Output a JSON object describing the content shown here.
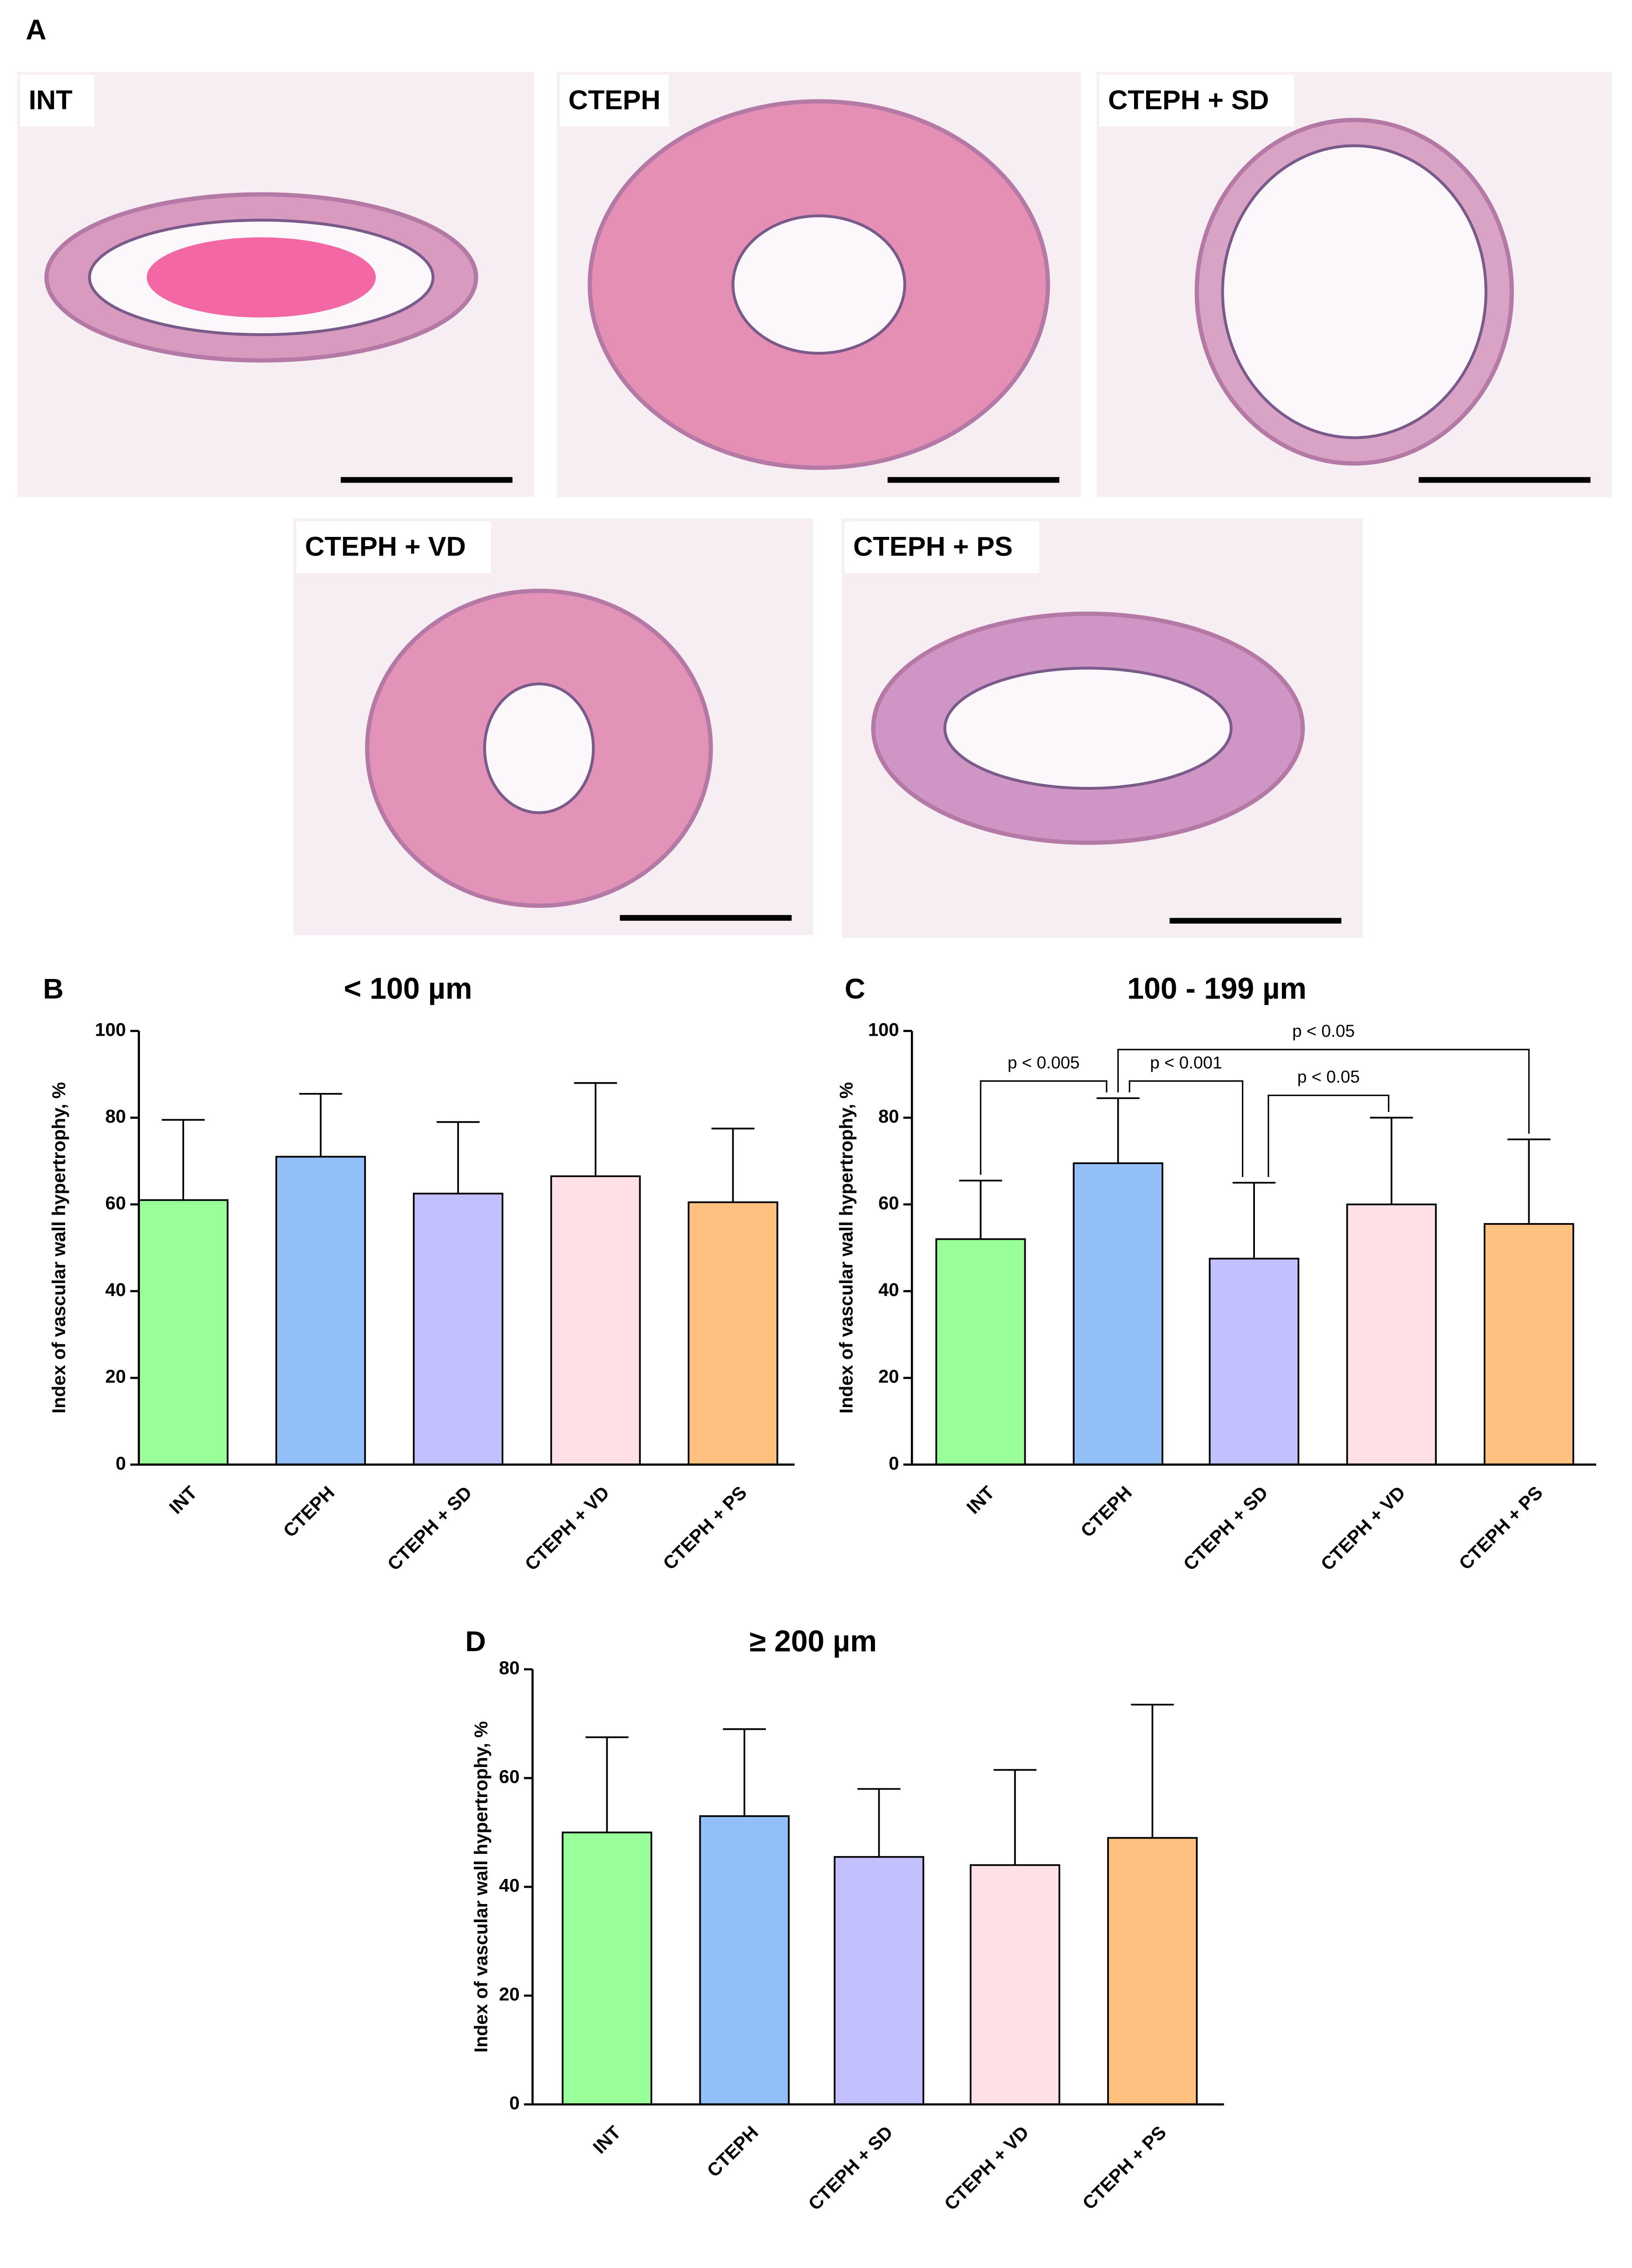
{
  "panel_a": {
    "label": "A",
    "images": [
      "INT",
      "CTEPH",
      "CTEPH + SD",
      "CTEPH + VD",
      "CTEPH + PS"
    ]
  },
  "chart_data": [
    {
      "type": "bar",
      "panel_label": "B",
      "title": "< 100 µm",
      "y_label": "Index of vascular wall hypertrophy, %",
      "categories": [
        "INT",
        "CTEPH",
        "CTEPH + SD",
        "CTEPH + VD",
        "CTEPH + PS"
      ],
      "values": [
        61,
        71,
        62.5,
        66.5,
        60.5
      ],
      "errors": [
        18.5,
        14.5,
        16.5,
        21.5,
        17
      ],
      "colors": [
        "#99ff99",
        "#92bff8",
        "#c2c0ff",
        "#ffe0e6",
        "#ffc080"
      ],
      "ylim": [
        0,
        100
      ],
      "yticks": [
        0,
        20,
        40,
        60,
        80,
        100
      ]
    },
    {
      "type": "bar",
      "panel_label": "C",
      "title": "100 - 199 µm",
      "y_label": "Index of vascular wall hypertrophy, %",
      "categories": [
        "INT",
        "CTEPH",
        "CTEPH + SD",
        "CTEPH + VD",
        "CTEPH + PS"
      ],
      "values": [
        52,
        69.5,
        47.5,
        60,
        55.5
      ],
      "errors": [
        13.5,
        15,
        17.5,
        20,
        19.5
      ],
      "colors": [
        "#99ff99",
        "#92bff8",
        "#c2c0ff",
        "#ffe0e6",
        "#ffc080"
      ],
      "ylim": [
        0,
        100
      ],
      "yticks": [
        0,
        20,
        40,
        60,
        80,
        100
      ],
      "annotations": [
        "p < 0.005",
        "p < 0.001",
        "p < 0.05",
        "p < 0.05"
      ]
    },
    {
      "type": "bar",
      "panel_label": "D",
      "title": "≥ 200 µm",
      "y_label": "Index of vascular wall hypertrophy, %",
      "categories": [
        "INT",
        "CTEPH",
        "CTEPH + SD",
        "CTEPH + VD",
        "CTEPH + PS"
      ],
      "values": [
        50,
        53,
        45.5,
        44,
        49
      ],
      "errors": [
        17.5,
        16,
        12.5,
        17.5,
        24.5
      ],
      "colors": [
        "#99ff99",
        "#92bff8",
        "#c2c0ff",
        "#ffe0e6",
        "#ffc080"
      ],
      "ylim": [
        0,
        80
      ],
      "yticks": [
        0,
        20,
        40,
        60,
        80
      ]
    }
  ]
}
